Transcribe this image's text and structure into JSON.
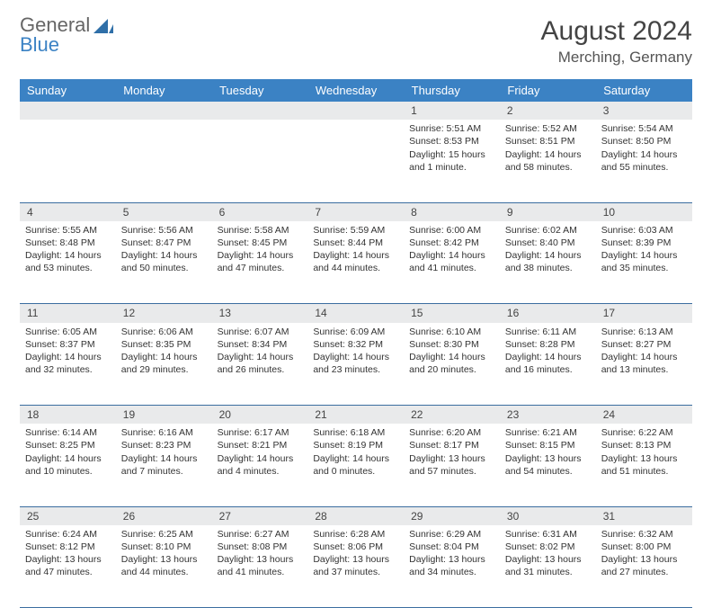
{
  "brand": {
    "part1": "General",
    "part2": "Blue"
  },
  "title": "August 2024",
  "location": "Merching, Germany",
  "colors": {
    "header_bg": "#3b82c4",
    "header_text": "#ffffff",
    "daynum_bg": "#e9eaeb",
    "row_border": "#3b6ea0",
    "text": "#333333",
    "logo_gray": "#666666",
    "logo_blue": "#3b82c4"
  },
  "weekdays": [
    "Sunday",
    "Monday",
    "Tuesday",
    "Wednesday",
    "Thursday",
    "Friday",
    "Saturday"
  ],
  "weeks": [
    {
      "nums": [
        "",
        "",
        "",
        "",
        "1",
        "2",
        "3"
      ],
      "cells": [
        null,
        null,
        null,
        null,
        {
          "sunrise": "5:51 AM",
          "sunset": "8:53 PM",
          "daylight": "15 hours and 1 minute."
        },
        {
          "sunrise": "5:52 AM",
          "sunset": "8:51 PM",
          "daylight": "14 hours and 58 minutes."
        },
        {
          "sunrise": "5:54 AM",
          "sunset": "8:50 PM",
          "daylight": "14 hours and 55 minutes."
        }
      ]
    },
    {
      "nums": [
        "4",
        "5",
        "6",
        "7",
        "8",
        "9",
        "10"
      ],
      "cells": [
        {
          "sunrise": "5:55 AM",
          "sunset": "8:48 PM",
          "daylight": "14 hours and 53 minutes."
        },
        {
          "sunrise": "5:56 AM",
          "sunset": "8:47 PM",
          "daylight": "14 hours and 50 minutes."
        },
        {
          "sunrise": "5:58 AM",
          "sunset": "8:45 PM",
          "daylight": "14 hours and 47 minutes."
        },
        {
          "sunrise": "5:59 AM",
          "sunset": "8:44 PM",
          "daylight": "14 hours and 44 minutes."
        },
        {
          "sunrise": "6:00 AM",
          "sunset": "8:42 PM",
          "daylight": "14 hours and 41 minutes."
        },
        {
          "sunrise": "6:02 AM",
          "sunset": "8:40 PM",
          "daylight": "14 hours and 38 minutes."
        },
        {
          "sunrise": "6:03 AM",
          "sunset": "8:39 PM",
          "daylight": "14 hours and 35 minutes."
        }
      ]
    },
    {
      "nums": [
        "11",
        "12",
        "13",
        "14",
        "15",
        "16",
        "17"
      ],
      "cells": [
        {
          "sunrise": "6:05 AM",
          "sunset": "8:37 PM",
          "daylight": "14 hours and 32 minutes."
        },
        {
          "sunrise": "6:06 AM",
          "sunset": "8:35 PM",
          "daylight": "14 hours and 29 minutes."
        },
        {
          "sunrise": "6:07 AM",
          "sunset": "8:34 PM",
          "daylight": "14 hours and 26 minutes."
        },
        {
          "sunrise": "6:09 AM",
          "sunset": "8:32 PM",
          "daylight": "14 hours and 23 minutes."
        },
        {
          "sunrise": "6:10 AM",
          "sunset": "8:30 PM",
          "daylight": "14 hours and 20 minutes."
        },
        {
          "sunrise": "6:11 AM",
          "sunset": "8:28 PM",
          "daylight": "14 hours and 16 minutes."
        },
        {
          "sunrise": "6:13 AM",
          "sunset": "8:27 PM",
          "daylight": "14 hours and 13 minutes."
        }
      ]
    },
    {
      "nums": [
        "18",
        "19",
        "20",
        "21",
        "22",
        "23",
        "24"
      ],
      "cells": [
        {
          "sunrise": "6:14 AM",
          "sunset": "8:25 PM",
          "daylight": "14 hours and 10 minutes."
        },
        {
          "sunrise": "6:16 AM",
          "sunset": "8:23 PM",
          "daylight": "14 hours and 7 minutes."
        },
        {
          "sunrise": "6:17 AM",
          "sunset": "8:21 PM",
          "daylight": "14 hours and 4 minutes."
        },
        {
          "sunrise": "6:18 AM",
          "sunset": "8:19 PM",
          "daylight": "14 hours and 0 minutes."
        },
        {
          "sunrise": "6:20 AM",
          "sunset": "8:17 PM",
          "daylight": "13 hours and 57 minutes."
        },
        {
          "sunrise": "6:21 AM",
          "sunset": "8:15 PM",
          "daylight": "13 hours and 54 minutes."
        },
        {
          "sunrise": "6:22 AM",
          "sunset": "8:13 PM",
          "daylight": "13 hours and 51 minutes."
        }
      ]
    },
    {
      "nums": [
        "25",
        "26",
        "27",
        "28",
        "29",
        "30",
        "31"
      ],
      "cells": [
        {
          "sunrise": "6:24 AM",
          "sunset": "8:12 PM",
          "daylight": "13 hours and 47 minutes."
        },
        {
          "sunrise": "6:25 AM",
          "sunset": "8:10 PM",
          "daylight": "13 hours and 44 minutes."
        },
        {
          "sunrise": "6:27 AM",
          "sunset": "8:08 PM",
          "daylight": "13 hours and 41 minutes."
        },
        {
          "sunrise": "6:28 AM",
          "sunset": "8:06 PM",
          "daylight": "13 hours and 37 minutes."
        },
        {
          "sunrise": "6:29 AM",
          "sunset": "8:04 PM",
          "daylight": "13 hours and 34 minutes."
        },
        {
          "sunrise": "6:31 AM",
          "sunset": "8:02 PM",
          "daylight": "13 hours and 31 minutes."
        },
        {
          "sunrise": "6:32 AM",
          "sunset": "8:00 PM",
          "daylight": "13 hours and 27 minutes."
        }
      ]
    }
  ]
}
